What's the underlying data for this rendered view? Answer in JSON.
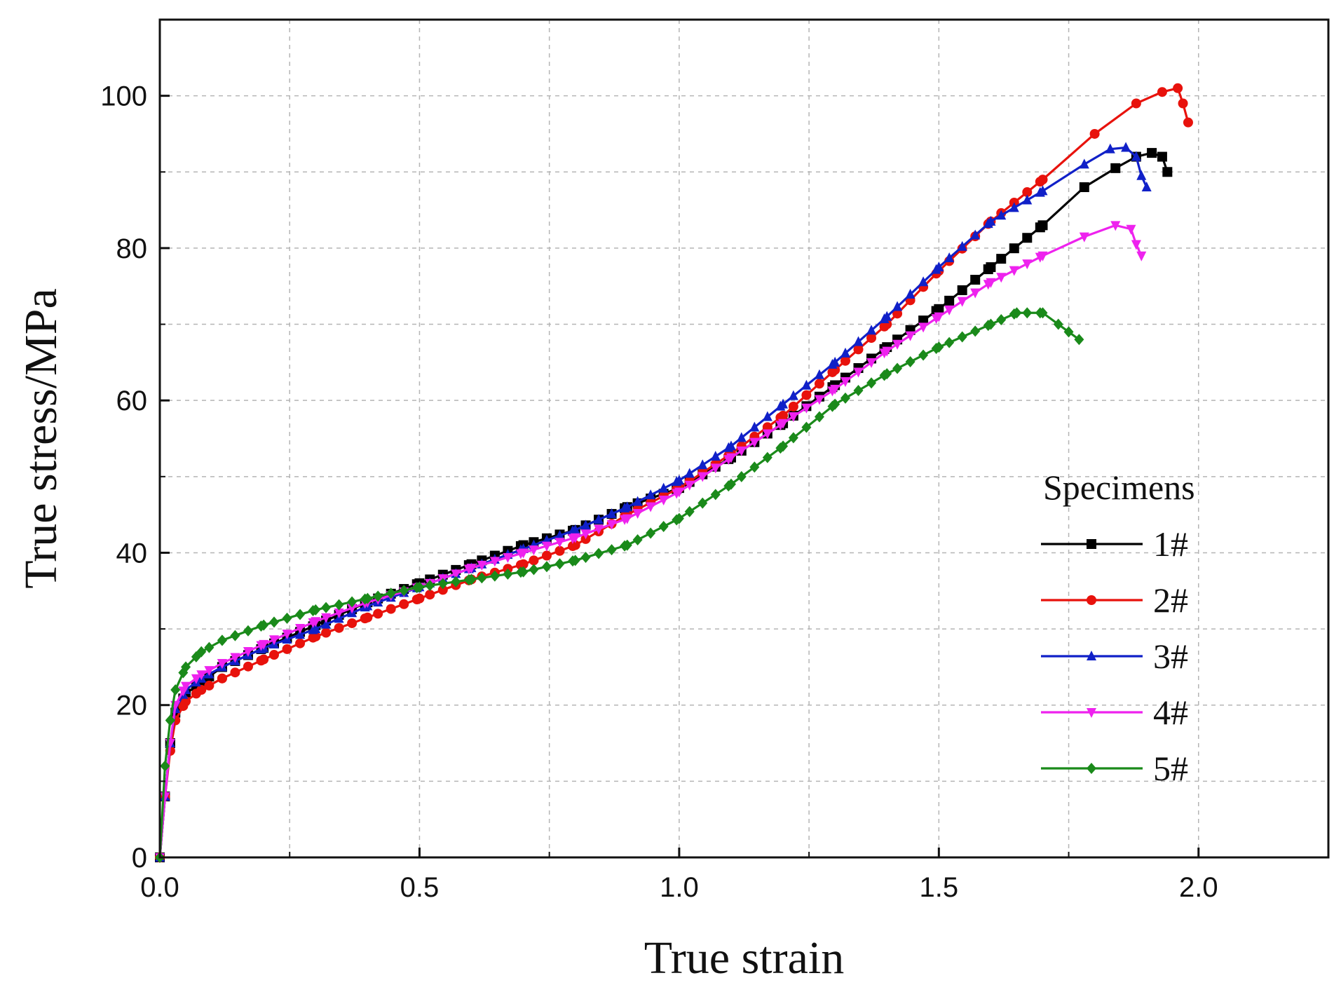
{
  "chart_data": {
    "type": "line",
    "xlabel": "True strain",
    "ylabel": "True stress/MPa",
    "xlim": [
      0,
      2.25
    ],
    "ylim": [
      0,
      110
    ],
    "xticks": [
      0.0,
      0.5,
      1.0,
      1.5,
      2.0
    ],
    "xtick_labels": [
      "0.0",
      "0.5",
      "1.0",
      "1.5",
      "2.0"
    ],
    "yticks": [
      0,
      20,
      40,
      60,
      80,
      100
    ],
    "ytick_labels": [
      "0",
      "20",
      "40",
      "60",
      "80",
      "100"
    ],
    "grid": true,
    "legend_title": "Specimens",
    "legend_position": "right",
    "series": [
      {
        "name": "1#",
        "color": "#000000",
        "marker": "square",
        "x": [
          0.0,
          0.01,
          0.02,
          0.03,
          0.05,
          0.08,
          0.12,
          0.2,
          0.3,
          0.4,
          0.5,
          0.6,
          0.7,
          0.8,
          0.9,
          1.0,
          1.1,
          1.2,
          1.3,
          1.4,
          1.5,
          1.6,
          1.7,
          1.78,
          1.84,
          1.88,
          1.91,
          1.93,
          1.94
        ],
        "y": [
          0,
          8,
          15,
          19,
          21.5,
          23,
          25,
          27.5,
          30.5,
          33.5,
          36,
          38.5,
          41,
          43,
          46,
          48.5,
          52.5,
          57,
          62,
          67,
          72,
          77.5,
          83,
          88,
          90.5,
          92,
          92.5,
          92,
          90
        ]
      },
      {
        "name": "2#",
        "color": "#e8120c",
        "marker": "circle",
        "x": [
          0.0,
          0.01,
          0.02,
          0.03,
          0.05,
          0.08,
          0.12,
          0.2,
          0.3,
          0.4,
          0.5,
          0.6,
          0.7,
          0.8,
          0.9,
          1.0,
          1.1,
          1.2,
          1.3,
          1.4,
          1.5,
          1.6,
          1.7,
          1.8,
          1.88,
          1.93,
          1.96,
          1.97,
          1.98
        ],
        "y": [
          0,
          8,
          14,
          18,
          20.5,
          22,
          23.5,
          26,
          29,
          31.5,
          34,
          36.5,
          38.5,
          41,
          45,
          48.5,
          53,
          58,
          64,
          70,
          77,
          83.5,
          89,
          95,
          99,
          100.5,
          101,
          99,
          96.5
        ]
      },
      {
        "name": "3#",
        "color": "#1020c8",
        "marker": "triangle-up",
        "x": [
          0.0,
          0.01,
          0.02,
          0.03,
          0.05,
          0.08,
          0.12,
          0.2,
          0.3,
          0.4,
          0.5,
          0.6,
          0.7,
          0.8,
          0.9,
          1.0,
          1.1,
          1.2,
          1.3,
          1.4,
          1.5,
          1.6,
          1.7,
          1.78,
          1.83,
          1.86,
          1.88,
          1.89,
          1.9
        ],
        "y": [
          0,
          8,
          15,
          19.5,
          22,
          23.5,
          25,
          27.5,
          30,
          33,
          35.5,
          38,
          40.5,
          43,
          46,
          49.5,
          54,
          59.5,
          65,
          71,
          77.5,
          83.5,
          87.5,
          91,
          93,
          93.2,
          92,
          89.5,
          88
        ]
      },
      {
        "name": "4#",
        "color": "#ee22ee",
        "marker": "triangle-down",
        "x": [
          0.0,
          0.01,
          0.02,
          0.03,
          0.05,
          0.08,
          0.12,
          0.2,
          0.3,
          0.4,
          0.5,
          0.6,
          0.7,
          0.8,
          0.9,
          1.0,
          1.1,
          1.2,
          1.3,
          1.4,
          1.5,
          1.6,
          1.7,
          1.78,
          1.84,
          1.87,
          1.88,
          1.89
        ],
        "y": [
          0,
          8,
          15,
          20,
          22.5,
          24,
          25.5,
          28,
          31,
          33.5,
          35.5,
          38,
          40,
          42,
          44.5,
          48,
          52.5,
          57,
          61.5,
          66.5,
          71,
          75.5,
          79,
          81.5,
          83,
          82.5,
          80.5,
          79
        ]
      },
      {
        "name": "5#",
        "color": "#1a8a1a",
        "marker": "diamond",
        "x": [
          0.0,
          0.01,
          0.02,
          0.03,
          0.05,
          0.08,
          0.12,
          0.2,
          0.3,
          0.4,
          0.5,
          0.6,
          0.7,
          0.8,
          0.9,
          1.0,
          1.1,
          1.2,
          1.3,
          1.4,
          1.5,
          1.6,
          1.65,
          1.7,
          1.73,
          1.75,
          1.77
        ],
        "y": [
          0,
          12,
          18,
          22,
          25,
          27,
          28.5,
          30.5,
          32.5,
          34,
          35.5,
          36.5,
          37.5,
          39,
          41,
          44.5,
          49,
          54,
          59.5,
          63.5,
          67,
          70,
          71.5,
          71.5,
          70,
          69,
          68
        ]
      }
    ]
  }
}
